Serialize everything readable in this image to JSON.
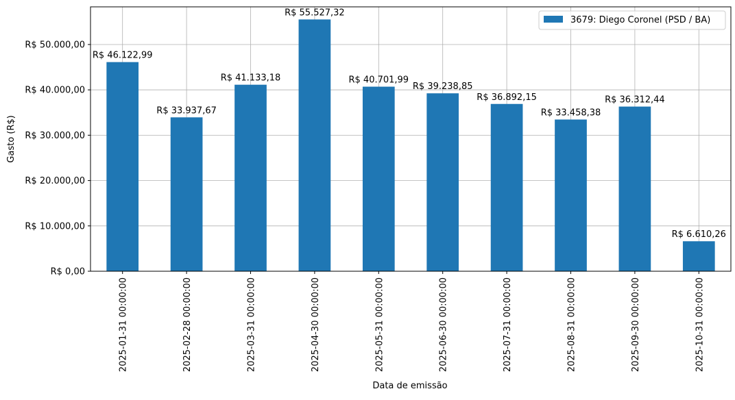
{
  "chart_data": {
    "type": "bar",
    "title": "",
    "xlabel": "Data de emissão",
    "ylabel": "Gasto (R$)",
    "categories": [
      "2025-01-31 00:00:00",
      "2025-02-28 00:00:00",
      "2025-03-31 00:00:00",
      "2025-04-30 00:00:00",
      "2025-05-31 00:00:00",
      "2025-06-30 00:00:00",
      "2025-07-31 00:00:00",
      "2025-08-31 00:00:00",
      "2025-09-30 00:00:00",
      "2025-10-31 00:00:00"
    ],
    "series": [
      {
        "name": "3679: Diego Coronel (PSD / BA)",
        "color": "#1f77b4",
        "values": [
          46122.99,
          33937.67,
          41133.18,
          55527.32,
          40701.99,
          39238.85,
          36892.15,
          33458.38,
          36312.44,
          6610.26
        ],
        "data_labels": [
          "R$ 46.122,99",
          "R$ 33.937,67",
          "R$ 41.133,18",
          "R$ 55.527,32",
          "R$ 40.701,99",
          "R$ 39.238,85",
          "R$ 36.892,15",
          "R$ 33.458,38",
          "R$ 36.312,44",
          "R$ 6.610,26"
        ]
      }
    ],
    "ylim": [
      0,
      58305
    ],
    "yticks": [
      0,
      10000,
      20000,
      30000,
      40000,
      50000
    ],
    "ytick_labels": [
      "R$ 0,00",
      "R$ 10.000,00",
      "R$ 20.000,00",
      "R$ 30.000,00",
      "R$ 40.000,00",
      "R$ 50.000,00"
    ],
    "grid": true,
    "legend_position": "top-right"
  }
}
